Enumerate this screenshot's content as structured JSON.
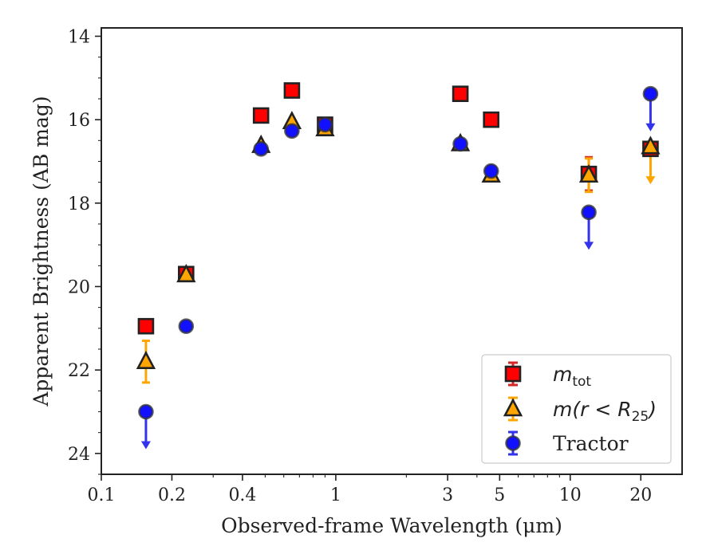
{
  "chart_data": {
    "type": "scatter",
    "xlabel": "Observed-frame Wavelength (μm)",
    "ylabel": "Apparent Brightness (AB mag)",
    "x_scale": "log",
    "xlim": [
      0.1,
      30
    ],
    "ylim": [
      24.5,
      13.8
    ],
    "y_inverted": true,
    "x_ticks": [
      0.1,
      0.2,
      0.4,
      1,
      3,
      5,
      10,
      20
    ],
    "x_tick_labels": [
      "0.1",
      "0.2",
      "0.4",
      "1",
      "3",
      "5",
      "10",
      "20"
    ],
    "y_ticks": [
      14,
      16,
      18,
      20,
      22,
      24
    ],
    "y_tick_labels": [
      "14",
      "16",
      "18",
      "20",
      "22",
      "24"
    ],
    "legend_position": "bottom-right",
    "series": [
      {
        "name": "m_tot",
        "legend_math": "m",
        "legend_sub": "tot",
        "marker": "square",
        "face_color": "#ff0000",
        "edge_color": "#222222",
        "error_color": "#d62728",
        "points": [
          {
            "x": 0.155,
            "y": 20.95
          },
          {
            "x": 0.23,
            "y": 19.7
          },
          {
            "x": 0.48,
            "y": 15.9
          },
          {
            "x": 0.65,
            "y": 15.3
          },
          {
            "x": 0.9,
            "y": 16.12
          },
          {
            "x": 3.4,
            "y": 15.38
          },
          {
            "x": 4.6,
            "y": 16.0
          },
          {
            "x": 12.0,
            "y": 17.3,
            "yerr": 0.4
          },
          {
            "x": 22.0,
            "y": 16.7
          }
        ]
      },
      {
        "name": "m(r < R25)",
        "legend_math": "m(r < R",
        "legend_sub": "25",
        "legend_tail": ")",
        "marker": "triangle",
        "face_color": "#ffa500",
        "edge_color": "#222222",
        "error_color": "#ffa500",
        "points": [
          {
            "x": 0.155,
            "y": 21.8,
            "yerr": 0.5
          },
          {
            "x": 0.23,
            "y": 19.72
          },
          {
            "x": 0.48,
            "y": 16.62
          },
          {
            "x": 0.65,
            "y": 16.05
          },
          {
            "x": 0.9,
            "y": 16.22
          },
          {
            "x": 3.4,
            "y": 16.58
          },
          {
            "x": 4.6,
            "y": 17.33
          },
          {
            "x": 12.0,
            "y": 17.33,
            "yerr": 0.4
          },
          {
            "x": 22.0,
            "y": 16.65,
            "upper_limit": true
          }
        ]
      },
      {
        "name": "Tractor",
        "marker": "circle",
        "face_color": "#1111ff",
        "edge_color": "#333333",
        "error_color": "#3333ee",
        "points": [
          {
            "x": 0.155,
            "y": 23.0,
            "upper_limit": true
          },
          {
            "x": 0.23,
            "y": 20.95
          },
          {
            "x": 0.48,
            "y": 16.7
          },
          {
            "x": 0.65,
            "y": 16.27
          },
          {
            "x": 0.9,
            "y": 16.12
          },
          {
            "x": 3.4,
            "y": 16.58
          },
          {
            "x": 4.6,
            "y": 17.23
          },
          {
            "x": 12.0,
            "y": 18.22,
            "upper_limit": true
          },
          {
            "x": 22.0,
            "y": 15.38,
            "upper_limit": true
          }
        ]
      }
    ]
  }
}
